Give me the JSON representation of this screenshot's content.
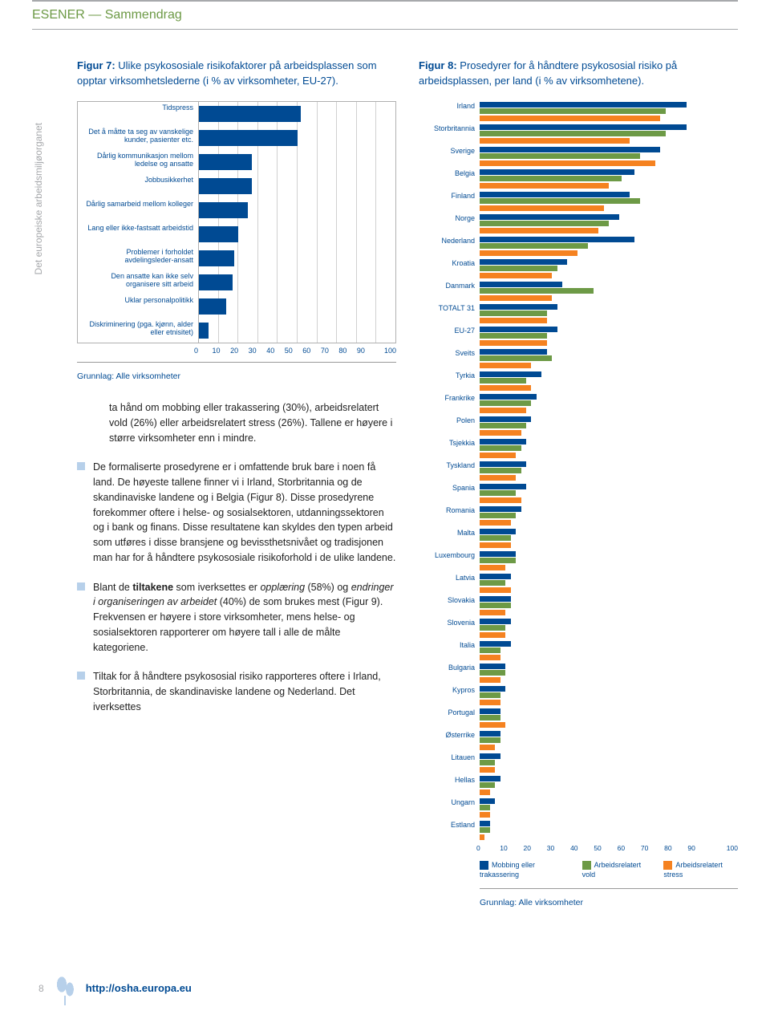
{
  "header": {
    "title": "ESENER — Sammendrag"
  },
  "sidebar_label": "Det europeiske arbeidsmiljøorganet",
  "fig7": {
    "title_prefix": "Figur 7:",
    "title_rest": " Ulike psykososiale risikofaktorer på arbeidsplassen som opptar virksomhetslederne (i % av virksomheter, EU-27).",
    "type": "bar",
    "bar_color": "#004a93",
    "grid_color": "#d0d0d0",
    "xmax": 100,
    "xtick_step": 10,
    "categories": [
      "Tidspress",
      "Det å måtte ta seg av vanskelige kunder, pasienter etc.",
      "Dårlig kommunikasjon mellom ledelse og ansatte",
      "Jobbusikkerhet",
      "Dårlig samarbeid mellom kolleger",
      "Lang eller ikke-fastsatt arbeidstid",
      "Problemer i forholdet avdelingsleder-ansatt",
      "Den ansatte kan ikke selv organisere sitt arbeid",
      "Uklar personalpolitikk",
      "Diskriminering (pga. kjønn, alder eller etnisitet)"
    ],
    "values": [
      52,
      50,
      27,
      27,
      25,
      20,
      18,
      17,
      14,
      5
    ],
    "xticks": [
      "0",
      "10",
      "20",
      "30",
      "40",
      "50",
      "60",
      "70",
      "80",
      "90",
      "100"
    ],
    "grunnlag": "Grunnlag: Alle virksomheter"
  },
  "body": {
    "p1_pre": "ta hånd om mobbing eller trakassering (30%), arbeidsrelatert vold (26%) eller arbeidsrelatert stress (26%). Tallene er høyere i større virksomheter enn i mindre.",
    "b1": "De formaliserte prosedyrene er i omfattende bruk bare i noen få land. De høyeste tallene finner vi i Irland, Storbritannia og de skandinaviske landene og i Belgia (Figur 8). Disse prosedyrene forekommer oftere i helse- og sosialsektoren, utdanningssektoren og i bank og finans. Disse resultatene kan skyldes den typen arbeid som utføres i disse bransjene og bevissthetsnivået og tradisjonen man har for å håndtere psykososiale risikoforhold i de ulike landene.",
    "b2_pre": "Blant de ",
    "b2_bold": "tiltakene",
    "b2_mid1": " som iverksettes er ",
    "b2_it1": "opplæring",
    "b2_mid2": " (58%) og ",
    "b2_it2": "endringer i organiseringen av arbeidet",
    "b2_post": " (40%) de som brukes mest (Figur 9). Frekvensen er høyere i store virksomheter, mens helse- og sosialsektoren rapporterer om høyere tall i alle de målte kategoriene.",
    "b3": "Tiltak for å håndtere psykososial risiko rapporteres oftere i Irland, Storbritannia, de skandinaviske landene og Nederland. Det iverksettes"
  },
  "fig8": {
    "title_prefix": "Figur 8:",
    "title_rest": " Prosedyrer for å håndtere psykososial risiko på arbeidsplassen, per land (i % av virksomhetene).",
    "type": "grouped-bar",
    "legend": [
      "Mobbing eller trakassering",
      "Arbeidsrelatert vold",
      "Arbeidsrelatert stress"
    ],
    "colors": [
      "#004a93",
      "#6d9a46",
      "#f58220"
    ],
    "xmax": 100,
    "xticks": [
      "0",
      "10",
      "20",
      "30",
      "40",
      "50",
      "60",
      "70",
      "80",
      "90",
      "100"
    ],
    "countries": [
      {
        "name": "Irland",
        "v": [
          80,
          72,
          70
        ]
      },
      {
        "name": "Storbritannia",
        "v": [
          80,
          72,
          58
        ]
      },
      {
        "name": "Sverige",
        "v": [
          70,
          62,
          68
        ]
      },
      {
        "name": "Belgia",
        "v": [
          60,
          55,
          50
        ]
      },
      {
        "name": "Finland",
        "v": [
          58,
          62,
          48
        ]
      },
      {
        "name": "Norge",
        "v": [
          54,
          50,
          46
        ]
      },
      {
        "name": "Nederland",
        "v": [
          60,
          42,
          38
        ]
      },
      {
        "name": "Kroatia",
        "v": [
          34,
          30,
          28
        ]
      },
      {
        "name": "Danmark",
        "v": [
          32,
          44,
          28
        ]
      },
      {
        "name": "TOTALT 31",
        "v": [
          30,
          26,
          26
        ]
      },
      {
        "name": "EU-27",
        "v": [
          30,
          26,
          26
        ]
      },
      {
        "name": "Sveits",
        "v": [
          26,
          28,
          20
        ]
      },
      {
        "name": "Tyrkia",
        "v": [
          24,
          18,
          20
        ]
      },
      {
        "name": "Frankrike",
        "v": [
          22,
          20,
          18
        ]
      },
      {
        "name": "Polen",
        "v": [
          20,
          18,
          16
        ]
      },
      {
        "name": "Tsjekkia",
        "v": [
          18,
          16,
          14
        ]
      },
      {
        "name": "Tyskland",
        "v": [
          18,
          16,
          14
        ]
      },
      {
        "name": "Spania",
        "v": [
          18,
          14,
          16
        ]
      },
      {
        "name": "Romania",
        "v": [
          16,
          14,
          12
        ]
      },
      {
        "name": "Malta",
        "v": [
          14,
          12,
          12
        ]
      },
      {
        "name": "Luxembourg",
        "v": [
          14,
          14,
          10
        ]
      },
      {
        "name": "Latvia",
        "v": [
          12,
          10,
          12
        ]
      },
      {
        "name": "Slovakia",
        "v": [
          12,
          12,
          10
        ]
      },
      {
        "name": "Slovenia",
        "v": [
          12,
          10,
          10
        ]
      },
      {
        "name": "Italia",
        "v": [
          12,
          8,
          8
        ]
      },
      {
        "name": "Bulgaria",
        "v": [
          10,
          10,
          8
        ]
      },
      {
        "name": "Kypros",
        "v": [
          10,
          8,
          8
        ]
      },
      {
        "name": "Portugal",
        "v": [
          8,
          8,
          10
        ]
      },
      {
        "name": "Østerrike",
        "v": [
          8,
          8,
          6
        ]
      },
      {
        "name": "Litauen",
        "v": [
          8,
          6,
          6
        ]
      },
      {
        "name": "Hellas",
        "v": [
          8,
          6,
          4
        ]
      },
      {
        "name": "Ungarn",
        "v": [
          6,
          4,
          4
        ]
      },
      {
        "name": "Estland",
        "v": [
          4,
          4,
          2
        ]
      }
    ],
    "grunnlag": "Grunnlag: Alle virksomheter"
  },
  "footer": {
    "page": "8",
    "url": "http://osha.europa.eu"
  }
}
